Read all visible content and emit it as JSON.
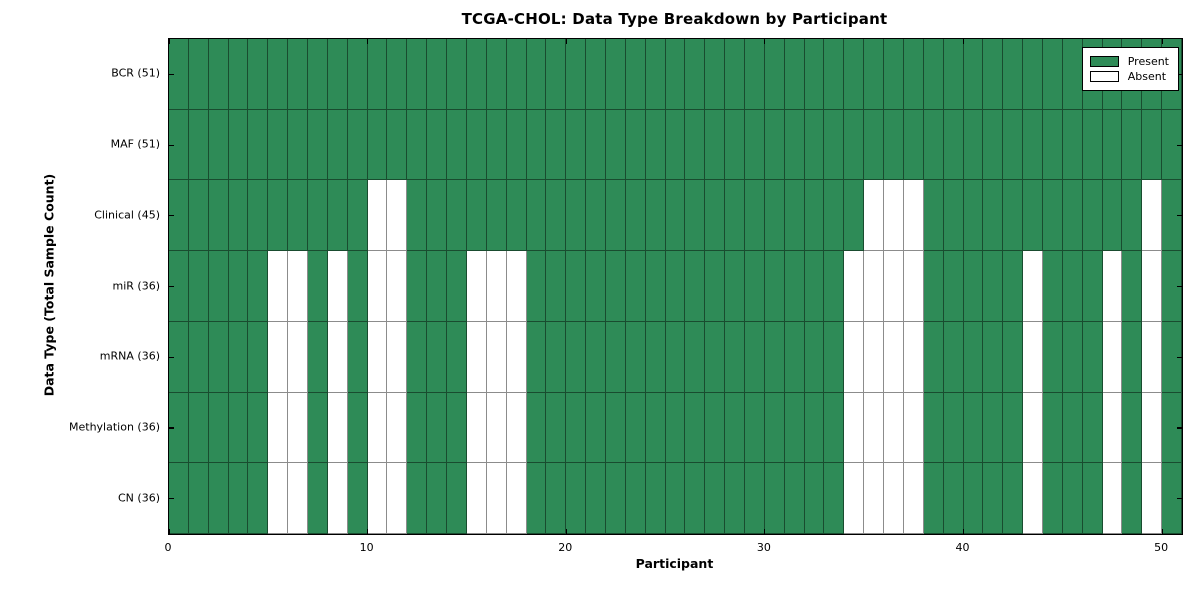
{
  "chart": {
    "title": "TCGA-CHOL: Data Type Breakdown by Participant",
    "xlabel": "Participant",
    "ylabel": "Data Type (Total Sample Count)"
  },
  "legend": {
    "present_label": "Present",
    "absent_label": "Absent"
  },
  "colors": {
    "present": "#2e8b57",
    "absent": "#ffffff",
    "cell_edge": "rgba(0,0,0,0.45)"
  },
  "chart_data": {
    "type": "heatmap",
    "title": "TCGA-CHOL: Data Type Breakdown by Participant",
    "xlabel": "Participant",
    "ylabel": "Data Type (Total Sample Count)",
    "x_axis": {
      "min": 0,
      "max": 51,
      "ticks": [
        0,
        10,
        20,
        30,
        40,
        50
      ]
    },
    "n_participants": 51,
    "legend_entries": [
      "Present",
      "Absent"
    ],
    "legend_position": "upper right",
    "rows": [
      {
        "label": "BCR (51)",
        "total": 51,
        "absent_participants": []
      },
      {
        "label": "MAF (51)",
        "total": 51,
        "absent_participants": []
      },
      {
        "label": "Clinical (45)",
        "total": 45,
        "absent_participants": [
          10,
          11,
          35,
          36,
          37,
          49
        ]
      },
      {
        "label": "miR (36)",
        "total": 36,
        "absent_participants": [
          5,
          6,
          8,
          10,
          11,
          15,
          16,
          17,
          34,
          35,
          36,
          37,
          43,
          47,
          49
        ]
      },
      {
        "label": "mRNA (36)",
        "total": 36,
        "absent_participants": [
          5,
          6,
          8,
          10,
          11,
          15,
          16,
          17,
          34,
          35,
          36,
          37,
          43,
          47,
          49
        ]
      },
      {
        "label": "Methylation (36)",
        "total": 36,
        "absent_participants": [
          5,
          6,
          8,
          10,
          11,
          15,
          16,
          17,
          34,
          35,
          36,
          37,
          43,
          47,
          49
        ]
      },
      {
        "label": "CN (36)",
        "total": 36,
        "absent_participants": [
          5,
          6,
          8,
          10,
          11,
          15,
          16,
          17,
          34,
          35,
          36,
          37,
          43,
          47,
          49
        ]
      }
    ]
  }
}
